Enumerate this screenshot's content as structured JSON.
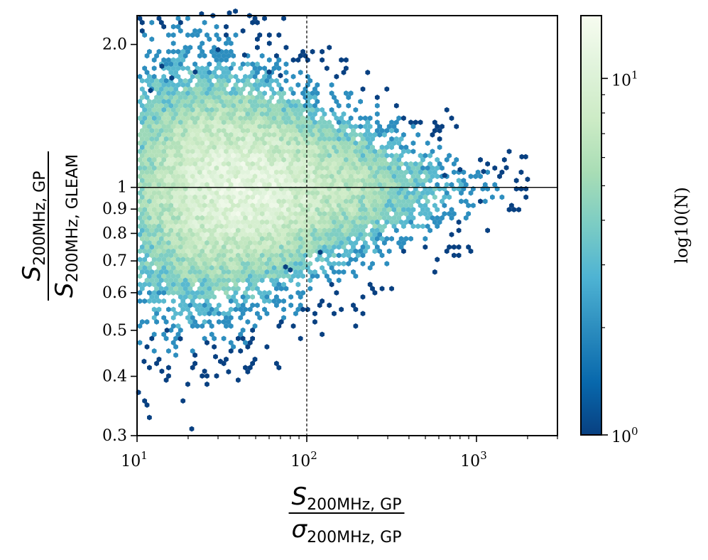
{
  "chart_data": {
    "type": "heatmap",
    "subtype": "hexbin",
    "x_scale": "log",
    "y_scale": "log",
    "xlim": [
      10,
      3000
    ],
    "ylim": [
      0.3,
      2.3
    ],
    "x_ticks": [
      {
        "value": 10,
        "base": "10",
        "exp": "1"
      },
      {
        "value": 100,
        "base": "10",
        "exp": "2"
      },
      {
        "value": 1000,
        "base": "10",
        "exp": "3"
      }
    ],
    "y_ticks": [
      {
        "value": 0.3,
        "label": "0.3"
      },
      {
        "value": 0.4,
        "label": "0.4"
      },
      {
        "value": 0.5,
        "label": "0.5"
      },
      {
        "value": 0.6,
        "label": "0.6"
      },
      {
        "value": 0.7,
        "label": "0.7"
      },
      {
        "value": 0.8,
        "label": "0.8"
      },
      {
        "value": 0.9,
        "label": "0.9"
      },
      {
        "value": 1.0,
        "label": "1"
      },
      {
        "value": 2.0,
        "label": "2.0"
      }
    ],
    "xlabel": {
      "num_main": "S",
      "num_sub": "200MHz, GP",
      "den_main": "σ",
      "den_sub": "200MHz, GP"
    },
    "ylabel": {
      "num_main": "S",
      "num_sub": "200MHz, GP",
      "den_main": "S",
      "den_sub": "200MHz, GLEAM"
    },
    "reference_lines": [
      {
        "orientation": "horizontal",
        "value": 1.0,
        "style": "solid"
      },
      {
        "orientation": "vertical",
        "value": 100,
        "style": "dashed"
      }
    ],
    "colorbar": {
      "label": "log10(N)",
      "scale": "log",
      "range": [
        1,
        15
      ],
      "ticks": [
        {
          "value": 1,
          "base": "10",
          "exp": "0"
        },
        {
          "value": 10,
          "base": "10",
          "exp": "1"
        }
      ],
      "colormap": [
        "#084081",
        "#0868ac",
        "#2b8cbe",
        "#4eb3d3",
        "#7bccc4",
        "#a8ddb5",
        "#ccebc5",
        "#e0f3db",
        "#f7fcf0"
      ]
    },
    "density_model": {
      "core": {
        "x_center": 35,
        "ratio_center": 1.0,
        "max_count": 14
      },
      "x_extent": [
        10,
        2050
      ],
      "ratio_spread_at_x10": 0.35,
      "ratio_spread_at_x2000": 0.06
    },
    "outlier_points": [
      [
        24,
        2.32
      ],
      [
        28,
        2.3
      ],
      [
        35,
        2.33
      ],
      [
        38,
        2.35
      ],
      [
        46,
        2.3
      ],
      [
        30,
        1.95
      ],
      [
        43,
        1.9
      ],
      [
        14,
        1.8
      ],
      [
        16,
        1.7
      ],
      [
        22,
        1.75
      ],
      [
        12,
        1.6
      ],
      [
        60,
        1.75
      ],
      [
        70,
        1.72
      ],
      [
        1850,
        1.16
      ],
      [
        1950,
        1.16
      ],
      [
        2000,
        1.04
      ],
      [
        1500,
        1.1
      ],
      [
        1100,
        1.08
      ],
      [
        800,
        1.09
      ],
      [
        650,
        1.06
      ],
      [
        10.2,
        0.37
      ],
      [
        11,
        0.43
      ],
      [
        14,
        0.41
      ],
      [
        21,
        0.31
      ],
      [
        25,
        0.41
      ],
      [
        31,
        0.43
      ],
      [
        29,
        0.44
      ],
      [
        18,
        0.48
      ],
      [
        15,
        0.5
      ],
      [
        120,
        0.73
      ],
      [
        80,
        0.67
      ],
      [
        75,
        0.68
      ]
    ]
  }
}
